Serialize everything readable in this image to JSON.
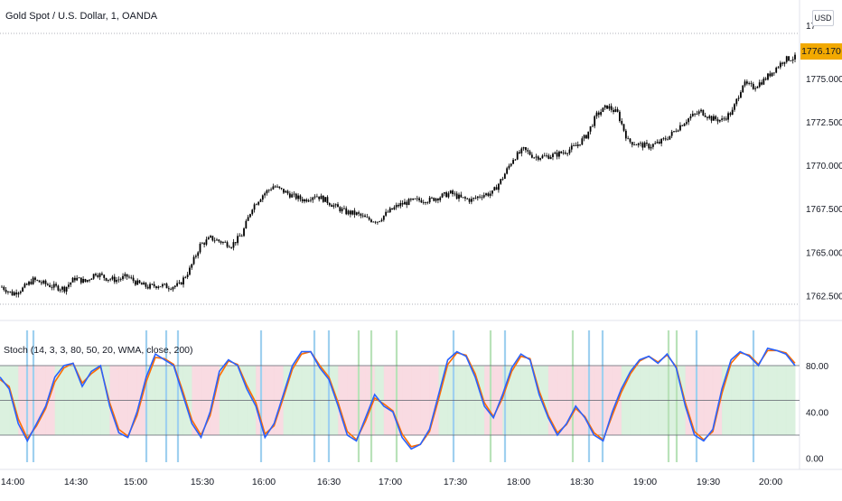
{
  "header": {
    "title": "Gold Spot / U.S. Dollar, 1, OANDA",
    "currency": "USD"
  },
  "indicator": {
    "label": "Stoch (14, 3, 3, 80, 50, 20, WMA, close, 200)"
  },
  "colors": {
    "candle": "#000000",
    "k_line": "#2962ff",
    "d_line": "#ff6d00",
    "zone_bull": "#d7efdc",
    "zone_bear": "#f8d7df",
    "vline_blue": "#9fd0ef",
    "vline_green": "#b9e2b9",
    "price_tag": "#f2a900"
  },
  "chart_data": [
    {
      "type": "candlestick",
      "title": "Gold Spot / U.S. Dollar, 1, OANDA",
      "x": [
        "14:00",
        "14:05",
        "14:10",
        "14:15",
        "14:20",
        "14:25",
        "14:30",
        "14:35",
        "14:40",
        "14:45",
        "14:50",
        "14:55",
        "15:00",
        "15:05",
        "15:10",
        "15:15",
        "15:20",
        "15:25",
        "15:30",
        "15:35",
        "15:40",
        "15:45",
        "15:50",
        "15:55",
        "16:00",
        "16:05",
        "16:10",
        "16:15",
        "16:20",
        "16:25",
        "16:30",
        "16:35",
        "16:40",
        "16:45",
        "16:50",
        "16:55",
        "17:00",
        "17:05",
        "17:10",
        "17:15",
        "17:20",
        "17:25",
        "17:30",
        "17:35",
        "17:40",
        "17:45",
        "17:50",
        "17:55",
        "18:00",
        "18:05",
        "18:10",
        "18:15",
        "18:20",
        "18:25",
        "18:30",
        "18:35",
        "18:40",
        "18:45",
        "18:50",
        "18:55",
        "19:00",
        "19:05",
        "19:10",
        "19:15",
        "19:20",
        "19:25",
        "19:30",
        "19:35",
        "19:40",
        "19:45",
        "19:50",
        "19:55",
        "20:00",
        "20:05",
        "20:10",
        "20:15",
        "20:20"
      ],
      "close": [
        1763.0,
        1762.6,
        1762.9,
        1763.4,
        1763.2,
        1763.0,
        1762.9,
        1763.5,
        1763.3,
        1763.8,
        1763.5,
        1763.4,
        1763.6,
        1763.2,
        1763.0,
        1763.1,
        1763.0,
        1763.1,
        1764.0,
        1765.4,
        1765.8,
        1765.6,
        1765.4,
        1766.0,
        1767.6,
        1768.3,
        1768.8,
        1768.5,
        1768.2,
        1768.0,
        1768.3,
        1768.0,
        1767.6,
        1767.3,
        1767.2,
        1766.9,
        1766.8,
        1767.3,
        1767.7,
        1767.9,
        1768.0,
        1768.0,
        1768.2,
        1768.4,
        1768.1,
        1768.0,
        1768.3,
        1768.4,
        1769.3,
        1770.4,
        1770.9,
        1770.5,
        1770.5,
        1770.6,
        1770.8,
        1771.1,
        1771.7,
        1772.9,
        1773.4,
        1773.0,
        1771.4,
        1771.2,
        1771.1,
        1771.3,
        1771.7,
        1772.3,
        1772.8,
        1773.1,
        1772.7,
        1772.6,
        1773.1,
        1774.7,
        1774.5,
        1774.9,
        1775.5,
        1776.1,
        1776.2
      ],
      "ylim": [
        1761.7,
        1777.6
      ],
      "yticks": [
        "1775.000",
        "1772.500",
        "1770.000",
        "1767.500",
        "1765.000",
        "1762.500"
      ],
      "last_price_label": "1776.170",
      "axis_top_label": "17"
    },
    {
      "type": "line",
      "title": "Stoch (14, 3, 3, 80, 50, 20, WMA, close, 200)",
      "series": [
        {
          "name": "",
          "values": [
            70,
            60,
            30,
            15,
            30,
            45,
            70,
            80,
            82,
            62,
            75,
            80,
            45,
            22,
            18,
            40,
            70,
            90,
            85,
            80,
            55,
            30,
            18,
            40,
            75,
            85,
            80,
            60,
            45,
            18,
            30,
            55,
            80,
            92,
            92,
            78,
            68,
            45,
            20,
            15,
            35,
            55,
            45,
            40,
            18,
            8,
            12,
            25,
            55,
            85,
            92,
            88,
            70,
            45,
            35,
            55,
            78,
            90,
            85,
            55,
            35,
            20,
            30,
            45,
            35,
            20,
            15,
            40,
            60,
            75,
            85,
            88,
            82,
            90,
            78,
            45,
            20,
            15,
            25,
            60,
            85,
            92,
            88,
            80,
            95,
            93,
            90,
            80
          ]
        },
        {
          "name": "",
          "values": [
            68,
            62,
            34,
            17,
            28,
            43,
            66,
            78,
            82,
            65,
            73,
            79,
            48,
            25,
            19,
            37,
            66,
            87,
            86,
            81,
            58,
            33,
            20,
            37,
            71,
            84,
            81,
            63,
            48,
            21,
            28,
            52,
            77,
            90,
            92,
            80,
            70,
            48,
            23,
            16,
            32,
            52,
            47,
            41,
            21,
            10,
            12,
            23,
            51,
            81,
            91,
            89,
            73,
            48,
            36,
            52,
            75,
            88,
            86,
            58,
            37,
            22,
            29,
            43,
            36,
            22,
            16,
            37,
            57,
            73,
            84,
            88,
            83,
            89,
            79,
            48,
            23,
            16,
            23,
            56,
            82,
            91,
            89,
            81,
            93,
            93,
            91,
            82
          ]
        }
      ],
      "ylim": [
        0,
        100
      ],
      "levels": [
        80,
        50,
        20
      ],
      "yticks": [
        "80.00",
        "40.00",
        "0.00"
      ]
    }
  ],
  "time_axis": [
    "14:00",
    "14:30",
    "15:00",
    "15:30",
    "16:00",
    "16:30",
    "17:00",
    "17:30",
    "18:00",
    "18:30",
    "19:00",
    "19:30",
    "20:00"
  ]
}
